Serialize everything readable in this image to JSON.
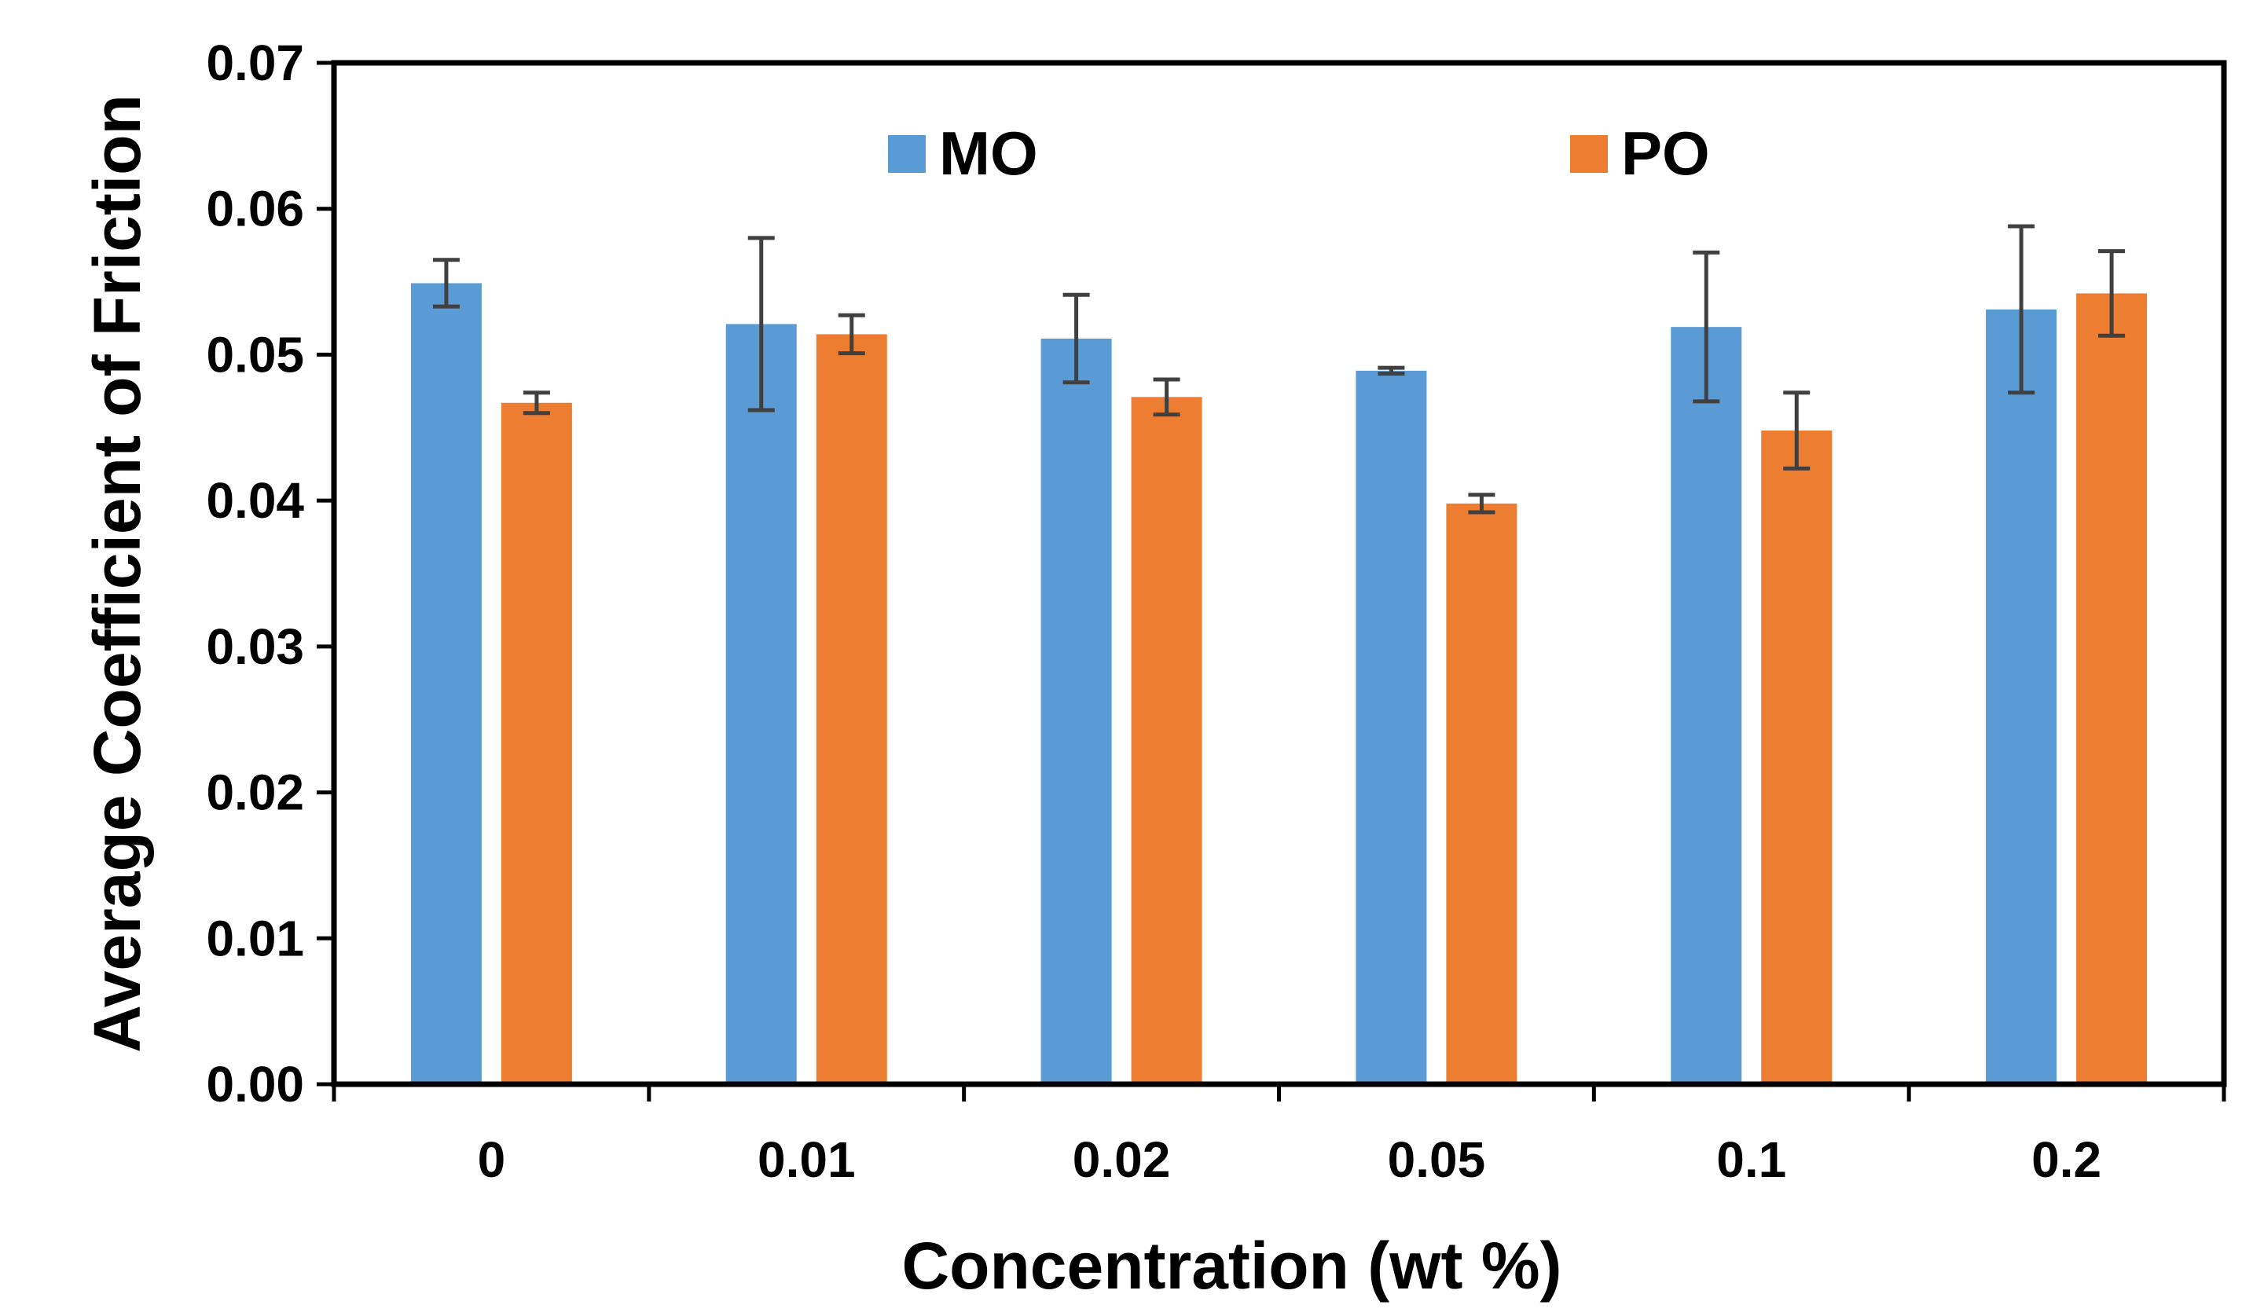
{
  "chart_data": {
    "type": "bar",
    "title": "",
    "xlabel": "Concentration (wt %)",
    "ylabel": "Average Coefficient of Friction",
    "categories": [
      "0",
      "0.01",
      "0.02",
      "0.05",
      "0.1",
      "0.2"
    ],
    "ylim": [
      0,
      0.07
    ],
    "yticks": [
      0,
      0.01,
      0.02,
      0.03,
      0.04,
      0.05,
      0.06,
      0.07
    ],
    "ytick_labels": [
      "0.00",
      "0.01",
      "0.02",
      "0.03",
      "0.04",
      "0.05",
      "0.06",
      "0.07"
    ],
    "grid": false,
    "legend_position": "top",
    "series": [
      {
        "name": "MO",
        "color": "#5B9BD5",
        "values": [
          0.0549,
          0.0521,
          0.0511,
          0.0489,
          0.0519,
          0.0531
        ],
        "errors": [
          0.0016,
          0.0059,
          0.003,
          0.0002,
          0.0051,
          0.0057
        ]
      },
      {
        "name": "PO",
        "color": "#ED7D31",
        "values": [
          0.0467,
          0.0514,
          0.0471,
          0.0398,
          0.0448,
          0.0542
        ],
        "errors": [
          0.0007,
          0.0013,
          0.0012,
          0.0006,
          0.0026,
          0.0029
        ]
      }
    ],
    "error_bar_color": "#404040"
  }
}
